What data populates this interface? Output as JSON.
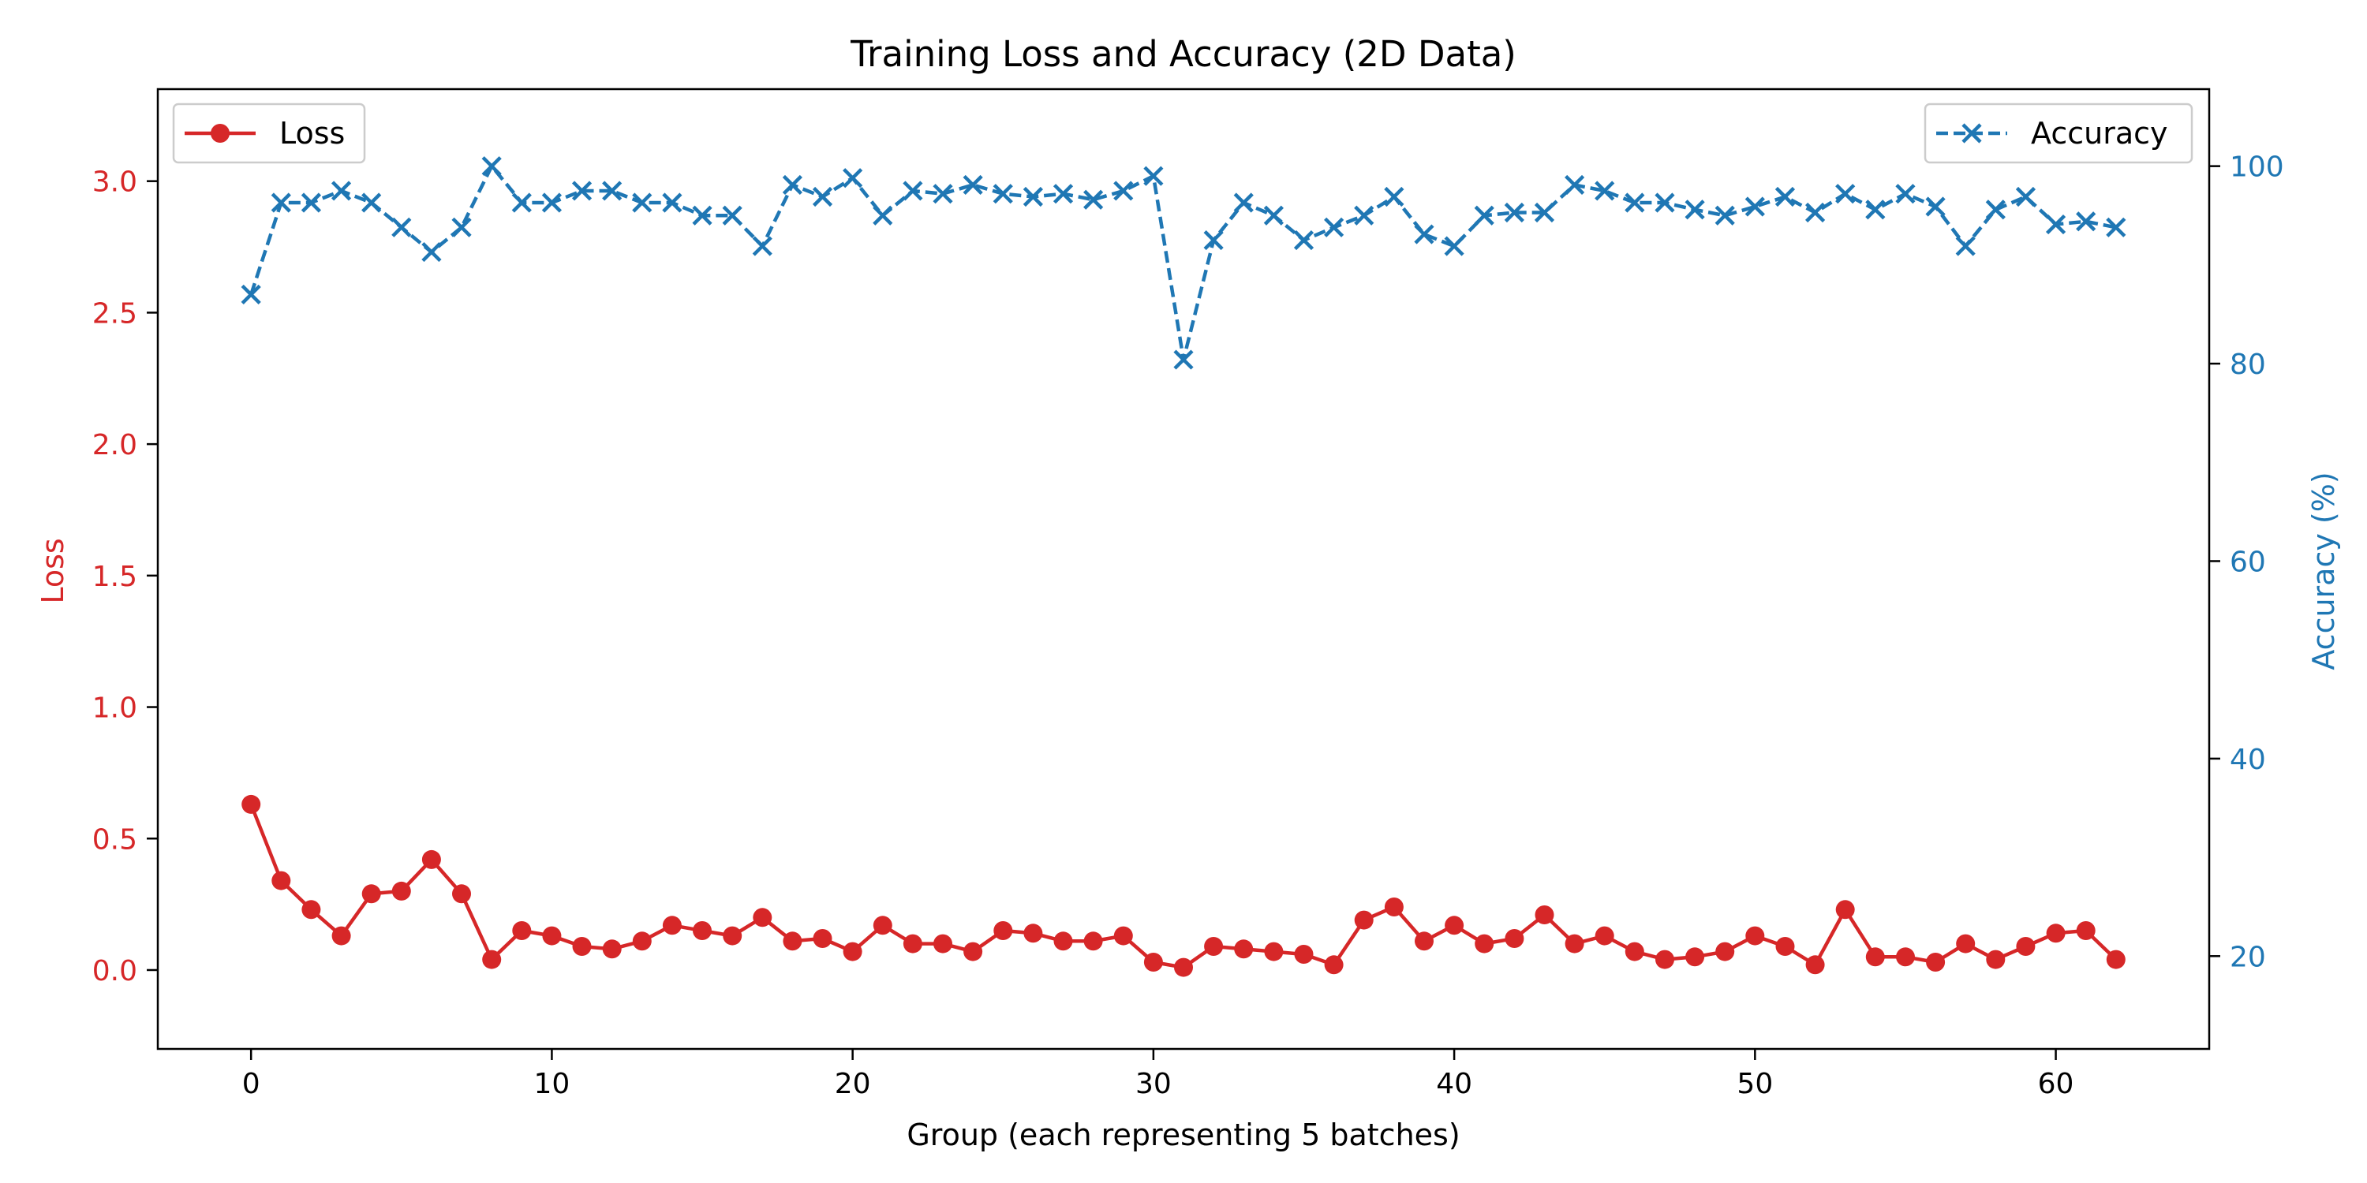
{
  "chart_data": {
    "type": "line",
    "title": "Training Loss and Accuracy (2D Data)",
    "xlabel": "Group (each representing 5 batches)",
    "ylabel_left": "Loss",
    "ylabel_right": "Accuracy (%)",
    "xlim": [
      -3.1,
      65.1
    ],
    "ylim_left": [
      -0.3,
      3.35
    ],
    "ylim_right": [
      10.6,
      107.8
    ],
    "x_ticks": [
      0,
      10,
      20,
      30,
      40,
      50,
      60
    ],
    "y_ticks_left": [
      0.0,
      0.5,
      1.0,
      1.5,
      2.0,
      2.5,
      3.0
    ],
    "y_ticks_right": [
      20,
      40,
      60,
      80,
      100
    ],
    "grid": false,
    "colors": {
      "loss": "#d62728",
      "accuracy": "#1f77b4"
    },
    "legend": [
      {
        "series": "loss",
        "label": "Loss",
        "placement": "top-left"
      },
      {
        "series": "accuracy",
        "label": "Accuracy",
        "placement": "top-right"
      }
    ],
    "series": [
      {
        "key": "loss",
        "name": "Loss",
        "axis": "left",
        "marker": "o",
        "linestyle": "solid",
        "values": [
          0.63,
          0.34,
          0.23,
          0.13,
          0.29,
          0.3,
          0.42,
          0.29,
          0.04,
          0.15,
          0.13,
          0.09,
          0.08,
          0.11,
          0.17,
          0.15,
          0.13,
          0.2,
          0.11,
          0.12,
          0.07,
          0.17,
          0.1,
          0.1,
          0.07,
          0.15,
          0.14,
          0.11,
          0.11,
          0.13,
          0.03,
          0.01,
          0.09,
          0.08,
          0.07,
          0.06,
          0.02,
          0.19,
          0.24,
          0.11,
          0.17,
          0.1,
          0.12,
          0.21,
          0.1,
          0.13,
          0.07,
          0.04,
          0.05,
          0.07,
          0.13,
          0.09,
          0.02,
          0.23,
          0.05,
          0.05,
          0.03,
          0.1,
          0.04,
          0.09,
          0.14,
          0.15,
          0.04
        ]
      },
      {
        "key": "accuracy",
        "name": "Accuracy",
        "axis": "right",
        "marker": "x",
        "linestyle": "dashed",
        "values": [
          87.0,
          96.3,
          96.3,
          97.5,
          96.3,
          93.8,
          91.3,
          93.8,
          100.0,
          96.3,
          96.3,
          97.5,
          97.5,
          96.3,
          96.3,
          95.0,
          95.0,
          91.9,
          98.1,
          96.9,
          98.8,
          95.0,
          97.5,
          97.2,
          98.1,
          97.2,
          96.9,
          97.2,
          96.6,
          97.5,
          99.0,
          80.4,
          92.5,
          96.3,
          95.0,
          92.5,
          93.8,
          95.0,
          96.9,
          93.1,
          91.9,
          95.0,
          95.3,
          95.3,
          98.1,
          97.5,
          96.3,
          96.3,
          95.6,
          95.0,
          95.9,
          96.9,
          95.3,
          97.2,
          95.6,
          97.2,
          95.9,
          91.9,
          95.6,
          96.9,
          94.1,
          94.4,
          93.8
        ]
      }
    ]
  }
}
